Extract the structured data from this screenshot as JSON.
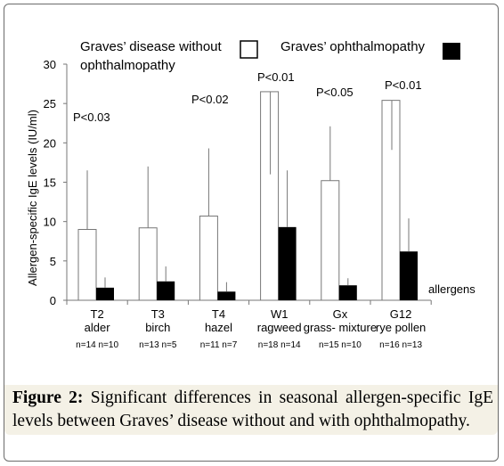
{
  "chart_data": {
    "type": "bar",
    "ylabel": "Allergen-specific IgE levels (IU/ml)",
    "xlabel": "allergens",
    "ylim": [
      0,
      30
    ],
    "yticks": [
      0,
      5,
      10,
      15,
      20,
      25,
      30
    ],
    "grid": false,
    "legend_position": "top",
    "categories": [
      {
        "code": "T2",
        "name": "alder",
        "n": "n=14 n=10"
      },
      {
        "code": "T3",
        "name": "birch",
        "n": "n=13 n=5"
      },
      {
        "code": "T4",
        "name": "hazel",
        "n": "n=11 n=7"
      },
      {
        "code": "W1",
        "name": "ragweed",
        "n": "n=18  n=14"
      },
      {
        "code": "Gx",
        "name": "grass- mixture",
        "n": "n=15  n=10"
      },
      {
        "code": "G12",
        "name": "rye pollen",
        "n": "n=16  n=13"
      }
    ],
    "series": [
      {
        "name": "Graves’ disease without ophthalmopathy",
        "color": "#ffffff",
        "values": [
          9.0,
          9.2,
          10.7,
          26.5,
          15.2,
          25.4
        ],
        "error_upper": [
          16.5,
          17.0,
          19.3,
          26.5,
          22.1,
          25.4
        ],
        "error_lower": [
          null,
          null,
          null,
          16.0,
          null,
          19.1
        ]
      },
      {
        "name": "Graves’ ophthalmopathy",
        "color": "#000000",
        "values": [
          1.6,
          2.4,
          1.1,
          9.3,
          1.9,
          6.2
        ],
        "error_upper": [
          2.9,
          4.3,
          2.3,
          16.5,
          2.8,
          10.4
        ]
      }
    ],
    "annotations": [
      "P<0.03",
      "",
      "P<0.02",
      "P<0.01",
      "P<0.05",
      "P<0.01"
    ]
  },
  "caption": {
    "label": "Figure 2:",
    "text": " Significant differences in seasonal allergen-specific IgE levels between Graves’ disease without and with ophthalmopathy."
  }
}
